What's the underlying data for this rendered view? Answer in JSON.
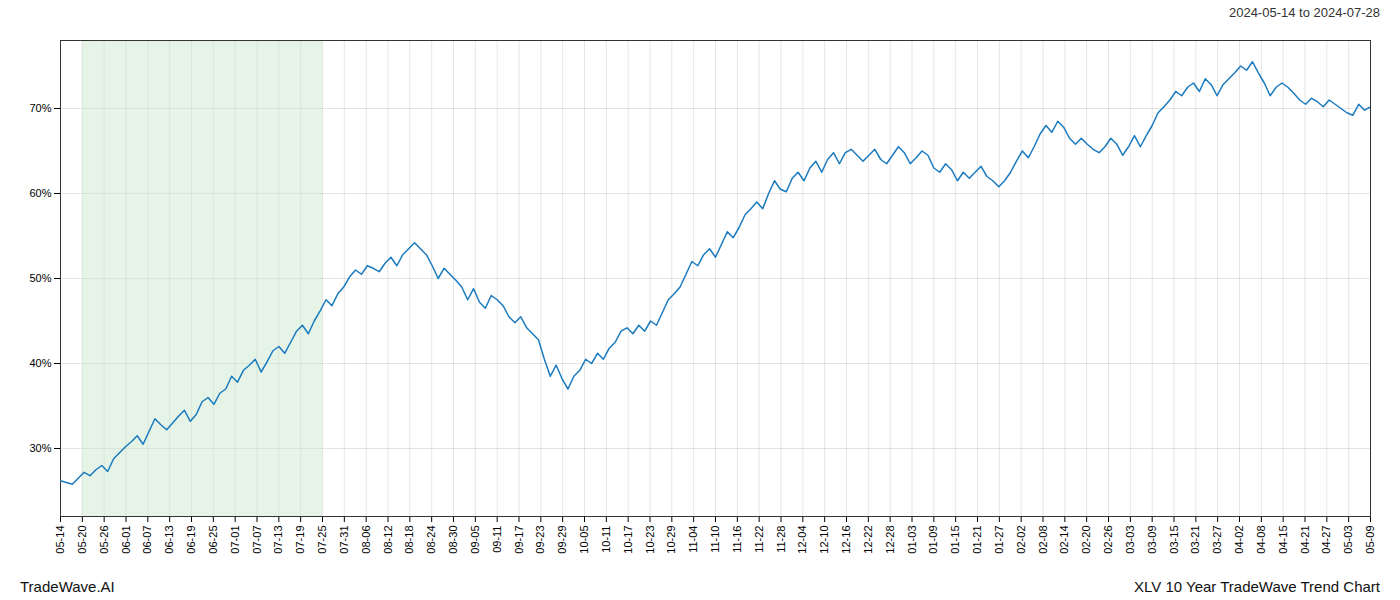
{
  "chart_data": {
    "type": "line",
    "title": "2024-05-14 to 2024-07-28",
    "annotations": [
      "TradeWave.AI",
      "XLV 10 Year TradeWave Trend Chart"
    ],
    "color": "#1a7abf",
    "grid": true,
    "span": {
      "from": 3.7,
      "to": 44.4,
      "color": "#c8e6c9"
    },
    "xlim": [
      0,
      222
    ],
    "xticks": [
      {
        "value": 0,
        "label": "05-14"
      },
      {
        "value": 3.7,
        "label": "05-20"
      },
      {
        "value": 7.4,
        "label": "05-26"
      },
      {
        "value": 11.1,
        "label": "06-01"
      },
      {
        "value": 14.8,
        "label": "06-07"
      },
      {
        "value": 18.5,
        "label": "06-13"
      },
      {
        "value": 22.2,
        "label": "06-19"
      },
      {
        "value": 25.9,
        "label": "06-25"
      },
      {
        "value": 29.6,
        "label": "07-01"
      },
      {
        "value": 33.3,
        "label": "07-07"
      },
      {
        "value": 37,
        "label": "07-13"
      },
      {
        "value": 40.7,
        "label": "07-19"
      },
      {
        "value": 44.4,
        "label": "07-25"
      },
      {
        "value": 48.1,
        "label": "07-31"
      },
      {
        "value": 51.8,
        "label": "08-06"
      },
      {
        "value": 55.5,
        "label": "08-12"
      },
      {
        "value": 59.2,
        "label": "08-18"
      },
      {
        "value": 62.9,
        "label": "08-24"
      },
      {
        "value": 66.6,
        "label": "08-30"
      },
      {
        "value": 70.3,
        "label": "09-05"
      },
      {
        "value": 74,
        "label": "09-11"
      },
      {
        "value": 77.7,
        "label": "09-17"
      },
      {
        "value": 81.4,
        "label": "09-23"
      },
      {
        "value": 85.1,
        "label": "09-29"
      },
      {
        "value": 88.8,
        "label": "10-05"
      },
      {
        "value": 92.5,
        "label": "10-11"
      },
      {
        "value": 96.2,
        "label": "10-17"
      },
      {
        "value": 99.9,
        "label": "10-23"
      },
      {
        "value": 103.6,
        "label": "10-29"
      },
      {
        "value": 107.3,
        "label": "11-04"
      },
      {
        "value": 111,
        "label": "11-10"
      },
      {
        "value": 114.7,
        "label": "11-16"
      },
      {
        "value": 118.4,
        "label": "11-22"
      },
      {
        "value": 122.1,
        "label": "11-28"
      },
      {
        "value": 125.8,
        "label": "12-04"
      },
      {
        "value": 129.5,
        "label": "12-10"
      },
      {
        "value": 133.2,
        "label": "12-16"
      },
      {
        "value": 136.9,
        "label": "12-22"
      },
      {
        "value": 140.6,
        "label": "12-28"
      },
      {
        "value": 144.3,
        "label": "01-03"
      },
      {
        "value": 148,
        "label": "01-09"
      },
      {
        "value": 151.7,
        "label": "01-15"
      },
      {
        "value": 155.4,
        "label": "01-21"
      },
      {
        "value": 159.1,
        "label": "01-27"
      },
      {
        "value": 162.8,
        "label": "02-02"
      },
      {
        "value": 166.5,
        "label": "02-08"
      },
      {
        "value": 170.2,
        "label": "02-14"
      },
      {
        "value": 173.9,
        "label": "02-20"
      },
      {
        "value": 177.6,
        "label": "02-26"
      },
      {
        "value": 181.3,
        "label": "03-03"
      },
      {
        "value": 185,
        "label": "03-09"
      },
      {
        "value": 188.7,
        "label": "03-15"
      },
      {
        "value": 192.4,
        "label": "03-21"
      },
      {
        "value": 196.1,
        "label": "03-27"
      },
      {
        "value": 199.8,
        "label": "04-02"
      },
      {
        "value": 203.5,
        "label": "04-08"
      },
      {
        "value": 207.2,
        "label": "04-15"
      },
      {
        "value": 210.9,
        "label": "04-21"
      },
      {
        "value": 214.6,
        "label": "04-27"
      },
      {
        "value": 218.3,
        "label": "05-03"
      },
      {
        "value": 222,
        "label": "05-09"
      }
    ],
    "ylim": [
      22,
      78
    ],
    "yticks": [
      {
        "value": 30,
        "label": "30%"
      },
      {
        "value": 40,
        "label": "40%"
      },
      {
        "value": 50,
        "label": "50%"
      },
      {
        "value": 60,
        "label": "60%"
      },
      {
        "value": 70,
        "label": "70%"
      }
    ],
    "values": [
      26.2,
      26.0,
      25.8,
      26.5,
      27.2,
      26.8,
      27.5,
      28.0,
      27.3,
      28.8,
      29.5,
      30.2,
      30.8,
      31.5,
      30.5,
      32.0,
      33.5,
      32.8,
      32.2,
      33.0,
      33.8,
      34.5,
      33.2,
      34.0,
      35.5,
      36.0,
      35.2,
      36.5,
      37.0,
      38.5,
      37.8,
      39.2,
      39.8,
      40.5,
      39.0,
      40.2,
      41.5,
      42.0,
      41.2,
      42.5,
      43.8,
      44.5,
      43.5,
      45.0,
      46.2,
      47.5,
      46.8,
      48.2,
      49.0,
      50.2,
      51.0,
      50.5,
      51.5,
      51.2,
      50.8,
      51.8,
      52.5,
      51.5,
      52.8,
      53.5,
      54.2,
      53.5,
      52.8,
      51.5,
      50.0,
      51.2,
      50.5,
      49.8,
      49.0,
      47.5,
      48.8,
      47.2,
      46.5,
      48.0,
      47.5,
      46.8,
      45.5,
      44.8,
      45.5,
      44.2,
      43.5,
      42.8,
      40.5,
      38.5,
      39.8,
      38.2,
      37.0,
      38.5,
      39.2,
      40.5,
      40.0,
      41.2,
      40.5,
      41.8,
      42.5,
      43.8,
      44.2,
      43.5,
      44.5,
      43.8,
      45.0,
      44.5,
      46.0,
      47.5,
      48.2,
      49.0,
      50.5,
      52.0,
      51.5,
      52.8,
      53.5,
      52.5,
      54.0,
      55.5,
      54.8,
      56.0,
      57.5,
      58.2,
      59.0,
      58.2,
      60.0,
      61.5,
      60.5,
      60.2,
      61.8,
      62.5,
      61.5,
      63.0,
      63.8,
      62.5,
      64.0,
      64.8,
      63.5,
      64.8,
      65.2,
      64.5,
      63.8,
      64.5,
      65.2,
      64.0,
      63.5,
      64.5,
      65.5,
      64.8,
      63.5,
      64.2,
      65.0,
      64.5,
      63.0,
      62.5,
      63.5,
      62.8,
      61.5,
      62.5,
      61.8,
      62.5,
      63.2,
      62.0,
      61.5,
      60.8,
      61.5,
      62.5,
      63.8,
      65.0,
      64.2,
      65.5,
      67.0,
      68.0,
      67.2,
      68.5,
      67.8,
      66.5,
      65.8,
      66.5,
      65.8,
      65.2,
      64.8,
      65.5,
      66.5,
      65.8,
      64.5,
      65.5,
      66.8,
      65.5,
      66.8,
      68.0,
      69.5,
      70.2,
      71.0,
      72.0,
      71.5,
      72.5,
      73.0,
      72.0,
      73.5,
      72.8,
      71.5,
      72.8,
      73.5,
      74.2,
      75.0,
      74.5,
      75.5,
      74.2,
      73.0,
      71.5,
      72.5,
      73.0,
      72.5,
      71.8,
      71.0,
      70.5,
      71.2,
      70.8,
      70.2,
      71.0,
      70.5,
      70.0,
      69.5,
      69.2,
      70.5,
      69.8,
      70.2
    ]
  }
}
